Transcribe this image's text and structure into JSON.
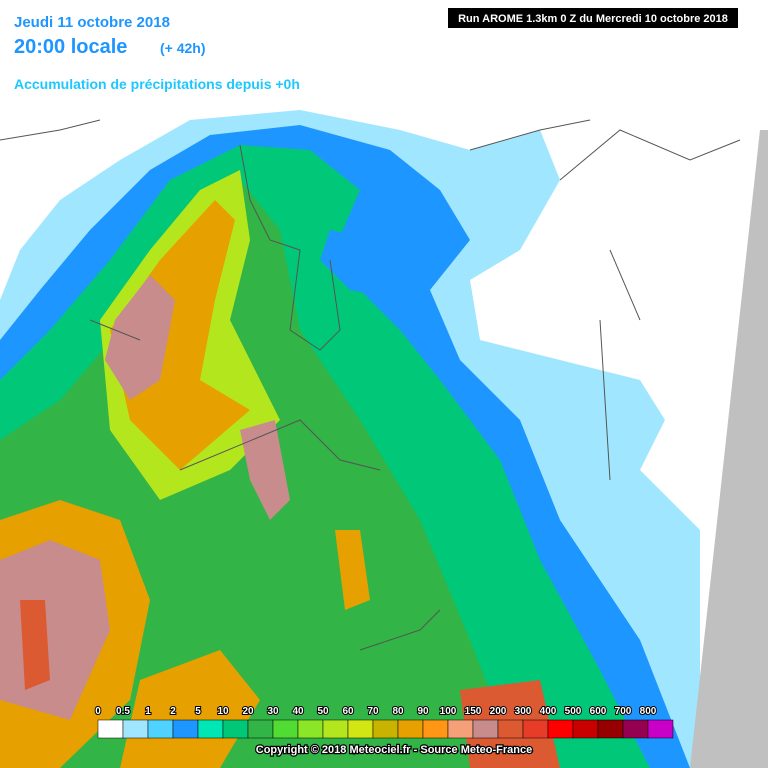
{
  "header": {
    "date": "Jeudi 11 octobre 2018",
    "time": "20:00 locale",
    "lead": "(+ 42h)",
    "field": "Accumulation de précipitations depuis +0h",
    "run": "Run AROME 1.3km 0 Z du Mercredi 10 octobre 2018"
  },
  "legend": [
    {
      "label": "0",
      "color": "#ffffff"
    },
    {
      "label": "0.5",
      "color": "#a0e6ff"
    },
    {
      "label": "1",
      "color": "#50d2ff"
    },
    {
      "label": "2",
      "color": "#1e96ff"
    },
    {
      "label": "5",
      "color": "#00e6b4"
    },
    {
      "label": "10",
      "color": "#00c878"
    },
    {
      "label": "20",
      "color": "#32b446"
    },
    {
      "label": "30",
      "color": "#50dc32"
    },
    {
      "label": "40",
      "color": "#8ce628"
    },
    {
      "label": "50",
      "color": "#b4e61e"
    },
    {
      "label": "60",
      "color": "#d2e614"
    },
    {
      "label": "70",
      "color": "#c8b400"
    },
    {
      "label": "80",
      "color": "#e6a000"
    },
    {
      "label": "90",
      "color": "#ff9614"
    },
    {
      "label": "100",
      "color": "#f5a078"
    },
    {
      "label": "150",
      "color": "#c88c8c"
    },
    {
      "label": "200",
      "color": "#dc5a32"
    },
    {
      "label": "300",
      "color": "#e63c28"
    },
    {
      "label": "400",
      "color": "#ff0000"
    },
    {
      "label": "500",
      "color": "#c80000"
    },
    {
      "label": "600",
      "color": "#960000"
    },
    {
      "label": "700",
      "color": "#960050"
    },
    {
      "label": "800",
      "color": "#c800c8"
    }
  ],
  "copyright": "Copyright © 2018 Meteociel.fr - Source Meteo-France"
}
